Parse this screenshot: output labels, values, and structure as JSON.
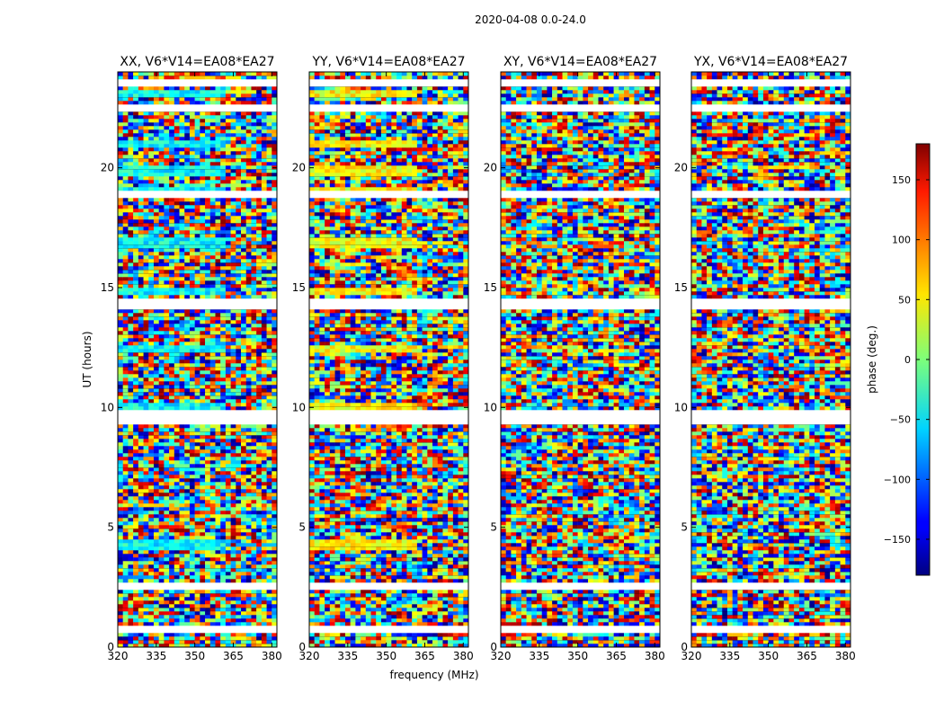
{
  "chart_data": {
    "type": "heatmap",
    "suptitle": "2020-04-08 0.0-24.0",
    "xlabel": "frequency (MHz)",
    "ylabel": "UT (hours)",
    "xlim": [
      320,
      382
    ],
    "ylim": [
      0,
      24
    ],
    "xticks": [
      320,
      335,
      350,
      365,
      380
    ],
    "yticks": [
      0,
      5,
      10,
      15,
      20
    ],
    "panels": [
      {
        "title": "XX, V6*V14=EA08*EA27",
        "pol": "XX"
      },
      {
        "title": "YY, V6*V14=EA08*EA27",
        "pol": "YY"
      },
      {
        "title": "XY, V6*V14=EA08*EA27",
        "pol": "XY"
      },
      {
        "title": "YX, V6*V14=EA08*EA27",
        "pol": "YX"
      }
    ],
    "colorbar": {
      "label": "phase (deg.)",
      "range": [
        -180,
        180
      ],
      "ticks": [
        -150,
        -100,
        -50,
        0,
        50,
        100,
        150
      ],
      "tick_labels": [
        "−150",
        "−100",
        "−50",
        "0",
        "50",
        "100",
        "150"
      ],
      "colormap": "jet"
    },
    "flagged_hours": [
      [
        0.65,
        0.72
      ],
      [
        2.4,
        2.55
      ],
      [
        9.35,
        9.8
      ],
      [
        14.05,
        14.4
      ],
      [
        18.75,
        18.95
      ],
      [
        22.35,
        22.45
      ],
      [
        23.45,
        23.55
      ]
    ],
    "ut_hours": [
      0.0,
      0.15,
      0.3,
      0.45,
      0.6,
      0.75,
      0.9,
      1.05,
      1.2,
      1.35,
      1.5,
      1.65,
      1.8,
      1.95,
      2.1,
      2.25,
      2.4,
      2.55,
      2.7,
      2.85,
      3.0,
      3.15,
      3.3,
      3.45,
      3.6,
      3.75,
      3.9,
      4.05,
      4.2,
      4.35,
      4.5,
      4.65,
      4.8,
      4.95,
      5.1,
      5.25,
      5.4,
      5.55,
      5.7,
      5.85,
      6.0,
      6.15,
      6.3,
      6.45,
      6.6,
      6.75,
      6.9,
      7.05,
      7.2,
      7.35,
      7.5,
      7.65,
      7.8,
      7.95,
      8.1,
      8.25,
      8.4,
      8.55,
      8.7,
      8.85,
      9.0,
      9.15,
      9.3,
      9.45,
      9.6,
      9.75,
      9.9,
      10.05,
      10.2,
      10.35,
      10.5,
      10.65,
      10.8,
      10.95,
      11.1,
      11.25,
      11.4,
      11.55,
      11.7,
      11.85,
      12.0,
      12.15,
      12.3,
      12.45,
      12.6,
      12.75,
      12.9,
      13.05,
      13.2,
      13.35,
      13.5,
      13.65,
      13.8,
      13.95,
      14.1,
      14.25,
      14.4,
      14.55,
      14.7,
      14.85,
      15.0,
      15.15,
      15.3,
      15.45,
      15.6,
      15.75,
      15.9,
      16.05,
      16.2,
      16.35,
      16.5,
      16.65,
      16.8,
      16.95,
      17.1,
      17.25,
      17.4,
      17.55,
      17.7,
      17.85,
      18.0,
      18.15,
      18.3,
      18.45,
      18.6,
      18.75,
      18.9,
      19.05,
      19.2,
      19.35,
      19.5,
      19.65,
      19.8,
      19.95,
      20.1,
      20.25,
      20.4,
      20.55,
      20.7,
      20.85,
      21.0,
      21.15,
      21.3,
      21.45,
      21.6,
      21.75,
      21.9,
      22.05,
      22.2,
      22.35,
      22.5,
      22.65,
      22.8,
      22.95,
      23.1,
      23.25,
      23.4,
      23.55,
      23.7,
      23.85
    ],
    "frequency_mhz": [
      320,
      322,
      324,
      326,
      328,
      330,
      332,
      334,
      336,
      338,
      340,
      342,
      344,
      346,
      348,
      350,
      352,
      354,
      356,
      358,
      360,
      362,
      364,
      366,
      368,
      370,
      372,
      374,
      376,
      378,
      380
    ],
    "coherent_bands_note": "XX and YY show coherent phase near 320-360 MHz (XX ~ -40 deg, YY ~ +40 deg) at UT ~4.2, 10.0, 12.4, 14.8, 16.8, 18.9, 19.8, 20.9, 23.0 h; XY and YX are noise-like."
  }
}
